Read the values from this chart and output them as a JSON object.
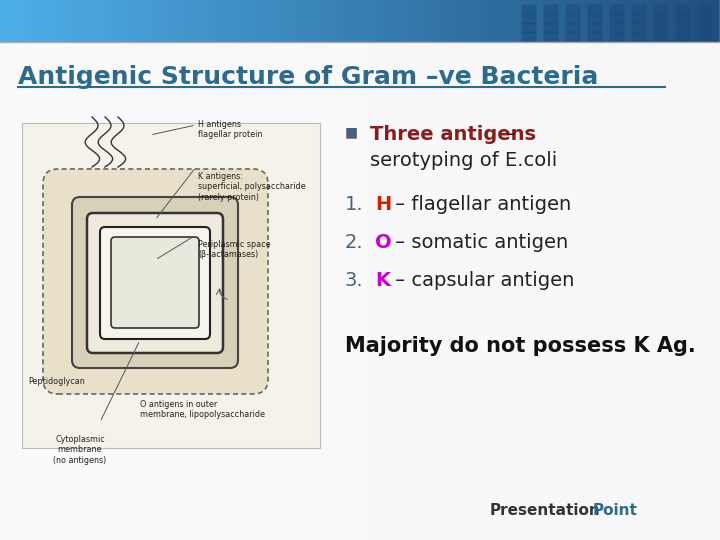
{
  "title": "Antigenic Structure of Gram –ve Bacteria",
  "title_color": "#2E6B8A",
  "bg_color": "#FFFFFF",
  "header_top_color": "#4AADE8",
  "header_right_color": "#1A4A7A",
  "header_dot_color": "#2A5A8A",
  "bullet_color": "#4A6080",
  "bullet_symbol": "■",
  "bullet_text_colored": "Three antigens",
  "bullet_text_colored_color": "#8B1A1A",
  "bullet_text_dash": " –",
  "bullet_line2": "serotyping of E.coli",
  "item1_number": "1.",
  "item1_letter": "H",
  "item1_letter_color": "#CC2200",
  "item1_rest": " – flagellar antigen",
  "item2_number": "2.",
  "item2_letter": "O",
  "item2_letter_color": "#CC00CC",
  "item2_rest": " – somatic antigen",
  "item3_number": "3.",
  "item3_letter": "K",
  "item3_letter_color": "#CC00CC",
  "item3_rest": " – capsular antigen",
  "number_color": "#4A6080",
  "body_text_color": "#222222",
  "footer_text": "Majority do not possess K Ag.",
  "footer_color": "#111111",
  "brand_presentation": "Presentation",
  "brand_point": "Point",
  "brand_presentation_color": "#333333",
  "brand_point_color": "#2E6B8A",
  "gradient_bg_left": "#E8E8EC",
  "gradient_bg_right": "#D0D0D8"
}
